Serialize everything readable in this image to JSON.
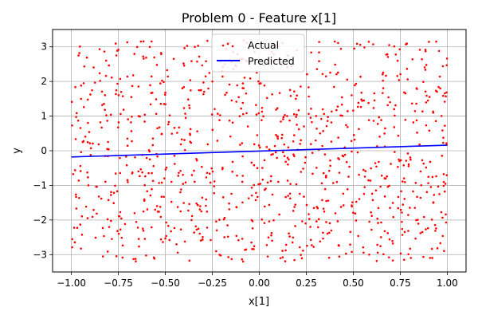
{
  "chart_data": {
    "type": "scatter",
    "title": "Problem 0 - Feature x[1]",
    "xlabel": "x[1]",
    "ylabel": "y",
    "xlim": [
      -1.1,
      1.1
    ],
    "ylim": [
      -3.5,
      3.5
    ],
    "x_ticks": [
      -1.0,
      -0.75,
      -0.5,
      -0.25,
      0.0,
      0.25,
      0.5,
      0.75,
      1.0
    ],
    "x_tick_labels": [
      "−1.00",
      "−0.75",
      "−0.50",
      "−0.25",
      "0.00",
      "0.25",
      "0.50",
      "0.75",
      "1.00"
    ],
    "y_ticks": [
      -3,
      -2,
      -1,
      0,
      1,
      2,
      3
    ],
    "y_tick_labels": [
      "−3",
      "−2",
      "−1",
      "0",
      "1",
      "2",
      "3"
    ],
    "grid": true,
    "legend": "upper center",
    "series": [
      {
        "name": "Actual",
        "kind": "scatter",
        "color": "#ff0000",
        "count": 1000,
        "x_range": [
          -1.0,
          1.0
        ],
        "y_range": [
          -3.2,
          3.2
        ],
        "distribution": "uniform"
      },
      {
        "name": "Predicted",
        "kind": "line",
        "color": "#0000ff",
        "x": [
          -1.0,
          1.0
        ],
        "y": [
          -0.18,
          0.16
        ]
      }
    ]
  }
}
